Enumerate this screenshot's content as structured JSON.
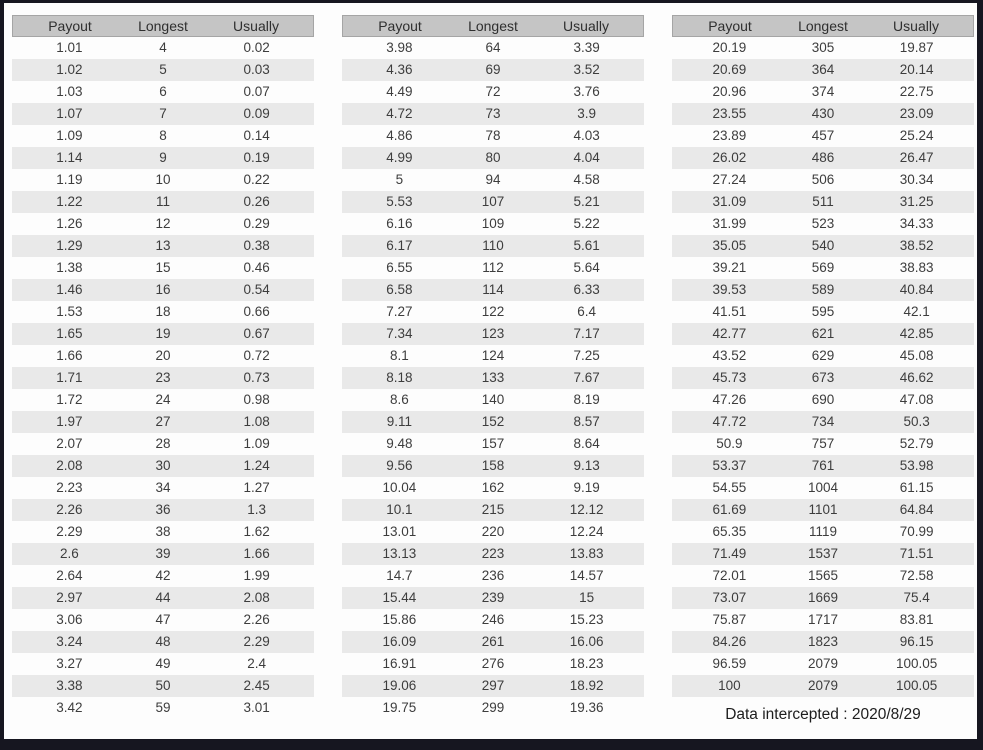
{
  "footer": {
    "label": "Data intercepted : 2020/8/29"
  },
  "colors": {
    "frame": "#161620",
    "page_bg": "#fdfdfd",
    "header_bg": "#c5c5c5",
    "row_alt_bg": "#e9e9e9",
    "text": "#3d3d3d"
  },
  "chart_data": [
    {
      "type": "table",
      "columns": [
        "Payout",
        "Longest",
        "Usually"
      ],
      "rows": [
        [
          1.01,
          4,
          0.02
        ],
        [
          1.02,
          5,
          0.03
        ],
        [
          1.03,
          6,
          0.07
        ],
        [
          1.07,
          7,
          0.09
        ],
        [
          1.09,
          8,
          0.14
        ],
        [
          1.14,
          9,
          0.19
        ],
        [
          1.19,
          10,
          0.22
        ],
        [
          1.22,
          11,
          0.26
        ],
        [
          1.26,
          12,
          0.29
        ],
        [
          1.29,
          13,
          0.38
        ],
        [
          1.38,
          15,
          0.46
        ],
        [
          1.46,
          16,
          0.54
        ],
        [
          1.53,
          18,
          0.66
        ],
        [
          1.65,
          19,
          0.67
        ],
        [
          1.66,
          20,
          0.72
        ],
        [
          1.71,
          23,
          0.73
        ],
        [
          1.72,
          24,
          0.98
        ],
        [
          1.97,
          27,
          1.08
        ],
        [
          2.07,
          28,
          1.09
        ],
        [
          2.08,
          30,
          1.24
        ],
        [
          2.23,
          34,
          1.27
        ],
        [
          2.26,
          36,
          1.3
        ],
        [
          2.29,
          38,
          1.62
        ],
        [
          2.6,
          39,
          1.66
        ],
        [
          2.64,
          42,
          1.99
        ],
        [
          2.97,
          44,
          2.08
        ],
        [
          3.06,
          47,
          2.26
        ],
        [
          3.24,
          48,
          2.29
        ],
        [
          3.27,
          49,
          2.4
        ],
        [
          3.38,
          50,
          2.45
        ],
        [
          3.42,
          59,
          3.01
        ]
      ]
    },
    {
      "type": "table",
      "columns": [
        "Payout",
        "Longest",
        "Usually"
      ],
      "rows": [
        [
          3.98,
          64,
          3.39
        ],
        [
          4.36,
          69,
          3.52
        ],
        [
          4.49,
          72,
          3.76
        ],
        [
          4.72,
          73,
          3.9
        ],
        [
          4.86,
          78,
          4.03
        ],
        [
          4.99,
          80,
          4.04
        ],
        [
          5,
          94,
          4.58
        ],
        [
          5.53,
          107,
          5.21
        ],
        [
          6.16,
          109,
          5.22
        ],
        [
          6.17,
          110,
          5.61
        ],
        [
          6.55,
          112,
          5.64
        ],
        [
          6.58,
          114,
          6.33
        ],
        [
          7.27,
          122,
          6.4
        ],
        [
          7.34,
          123,
          7.17
        ],
        [
          8.1,
          124,
          7.25
        ],
        [
          8.18,
          133,
          7.67
        ],
        [
          8.6,
          140,
          8.19
        ],
        [
          9.11,
          152,
          8.57
        ],
        [
          9.48,
          157,
          8.64
        ],
        [
          9.56,
          158,
          9.13
        ],
        [
          10.04,
          162,
          9.19
        ],
        [
          10.1,
          215,
          12.12
        ],
        [
          13.01,
          220,
          12.24
        ],
        [
          13.13,
          223,
          13.83
        ],
        [
          14.7,
          236,
          14.57
        ],
        [
          15.44,
          239,
          15
        ],
        [
          15.86,
          246,
          15.23
        ],
        [
          16.09,
          261,
          16.06
        ],
        [
          16.91,
          276,
          18.23
        ],
        [
          19.06,
          297,
          18.92
        ],
        [
          19.75,
          299,
          19.36
        ]
      ]
    },
    {
      "type": "table",
      "columns": [
        "Payout",
        "Longest",
        "Usually"
      ],
      "rows": [
        [
          20.19,
          305,
          19.87
        ],
        [
          20.69,
          364,
          20.14
        ],
        [
          20.96,
          374,
          22.75
        ],
        [
          23.55,
          430,
          23.09
        ],
        [
          23.89,
          457,
          25.24
        ],
        [
          26.02,
          486,
          26.47
        ],
        [
          27.24,
          506,
          30.34
        ],
        [
          31.09,
          511,
          31.25
        ],
        [
          31.99,
          523,
          34.33
        ],
        [
          35.05,
          540,
          38.52
        ],
        [
          39.21,
          569,
          38.83
        ],
        [
          39.53,
          589,
          40.84
        ],
        [
          41.51,
          595,
          42.1
        ],
        [
          42.77,
          621,
          42.85
        ],
        [
          43.52,
          629,
          45.08
        ],
        [
          45.73,
          673,
          46.62
        ],
        [
          47.26,
          690,
          47.08
        ],
        [
          47.72,
          734,
          50.3
        ],
        [
          50.9,
          757,
          52.79
        ],
        [
          53.37,
          761,
          53.98
        ],
        [
          54.55,
          1004,
          61.15
        ],
        [
          61.69,
          1101,
          64.84
        ],
        [
          65.35,
          1119,
          70.99
        ],
        [
          71.49,
          1537,
          71.51
        ],
        [
          72.01,
          1565,
          72.58
        ],
        [
          73.07,
          1669,
          75.4
        ],
        [
          75.87,
          1717,
          83.81
        ],
        [
          84.26,
          1823,
          96.15
        ],
        [
          96.59,
          2079,
          100.05
        ],
        [
          100,
          2079,
          100.05
        ]
      ]
    }
  ]
}
